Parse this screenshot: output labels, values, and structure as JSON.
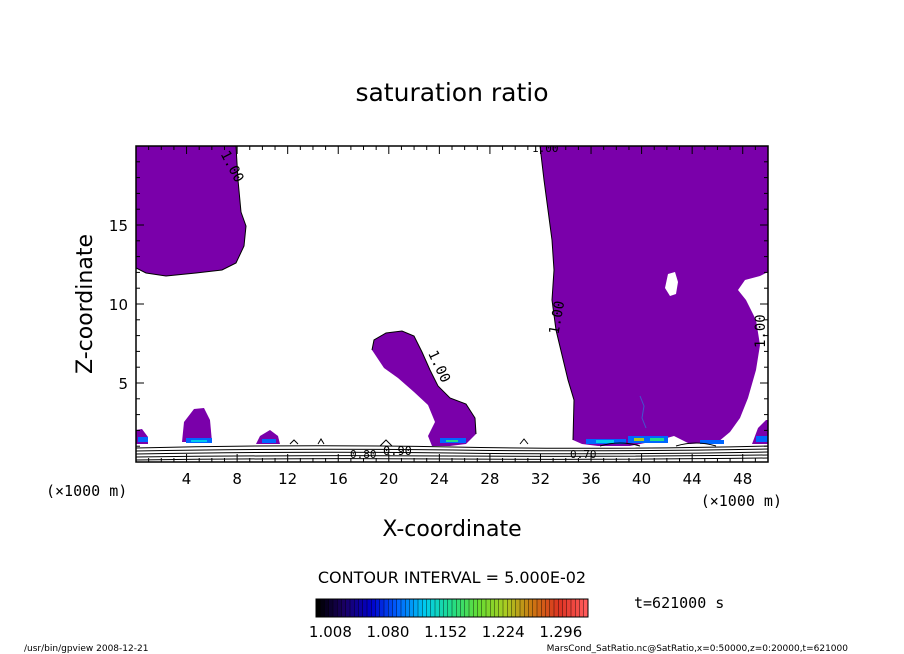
{
  "chart_data": {
    "type": "contour",
    "title": "saturation ratio",
    "xlabel": "X-coordinate",
    "ylabel": "Z-coordinate",
    "x_unit": "(×1000 m)",
    "y_unit": "(×1000 m)",
    "xlim": [
      0,
      50
    ],
    "ylim": [
      0,
      20
    ],
    "x_ticks": [
      4,
      8,
      12,
      16,
      20,
      24,
      28,
      32,
      36,
      40,
      44,
      48
    ],
    "y_ticks": [
      5,
      10,
      15
    ],
    "contour_interval_text": "CONTOUR INTERVAL = 5.000E-02",
    "time_text": "t=621000 s",
    "colorbar": {
      "tick_labels": [
        "1.008",
        "1.080",
        "1.152",
        "1.224",
        "1.296"
      ],
      "min": 0.99,
      "max": 1.33,
      "colors": [
        "#000000",
        "#1a0066",
        "#0000cc",
        "#0066ff",
        "#00ccee",
        "#22dd88",
        "#66dd33",
        "#aacc22",
        "#cc7711",
        "#dd3322",
        "#ff5a5a"
      ]
    },
    "contour_labels": [
      "1.00",
      "1.00",
      "1.00",
      "1.00",
      "1.00",
      "0.90",
      "0.80",
      "0.70"
    ],
    "region_color": "#7a00aa",
    "footer_left": "/usr/bin/gpview  2008-12-21",
    "footer_right": "MarsCond_SatRatio.nc@SatRatio,x=0:50000,z=0:20000,t=621000"
  }
}
